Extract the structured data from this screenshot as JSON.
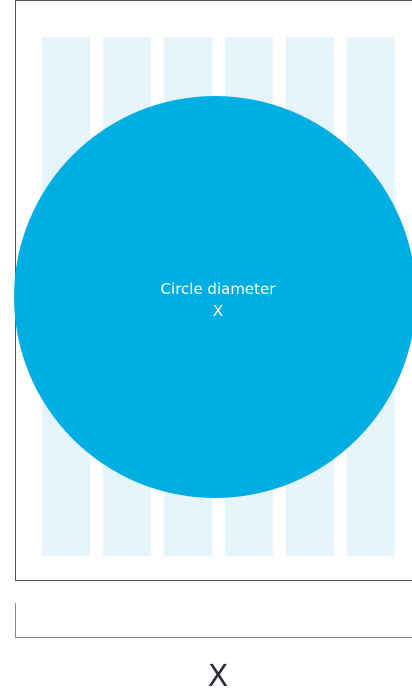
{
  "circle": {
    "label": "Circle diameter",
    "symbol": "X"
  },
  "dimension": {
    "label": "X"
  }
}
